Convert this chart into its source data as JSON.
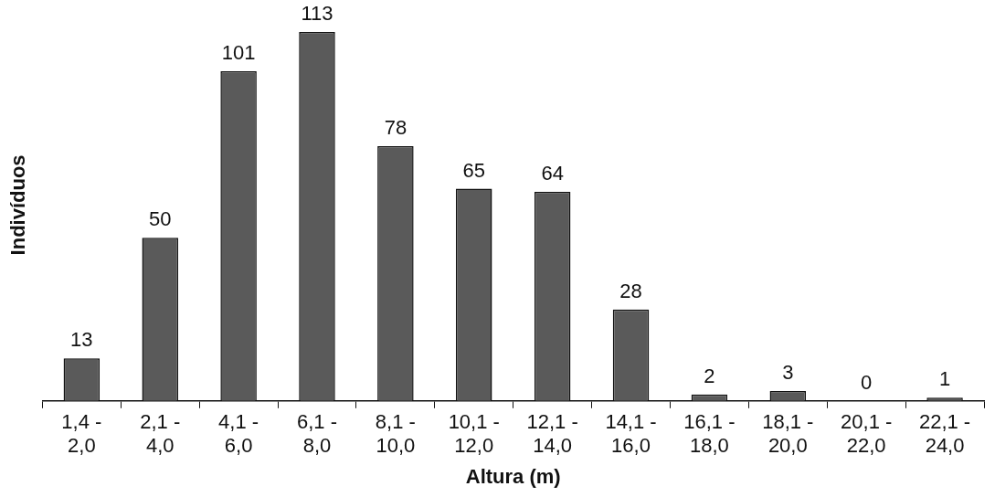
{
  "chart_data": {
    "type": "bar",
    "xlabel": "Altura (m)",
    "ylabel": "Indivíduos",
    "categories": [
      "1,4 - 2,0",
      "2,1 - 4,0",
      "4,1 - 6,0",
      "6,1 - 8,0",
      "8,1 - 10,0",
      "10,1 - 12,0",
      "12,1 - 14,0",
      "14,1 - 16,0",
      "16,1 - 18,0",
      "18,1 - 20,0",
      "20,1 - 22,0",
      "22,1 - 24,0"
    ],
    "values": [
      13,
      50,
      101,
      113,
      78,
      65,
      64,
      28,
      2,
      3,
      0,
      1
    ],
    "color": "#5a5a5a",
    "data_labels": true,
    "grid": false,
    "tick_labels": "x"
  }
}
